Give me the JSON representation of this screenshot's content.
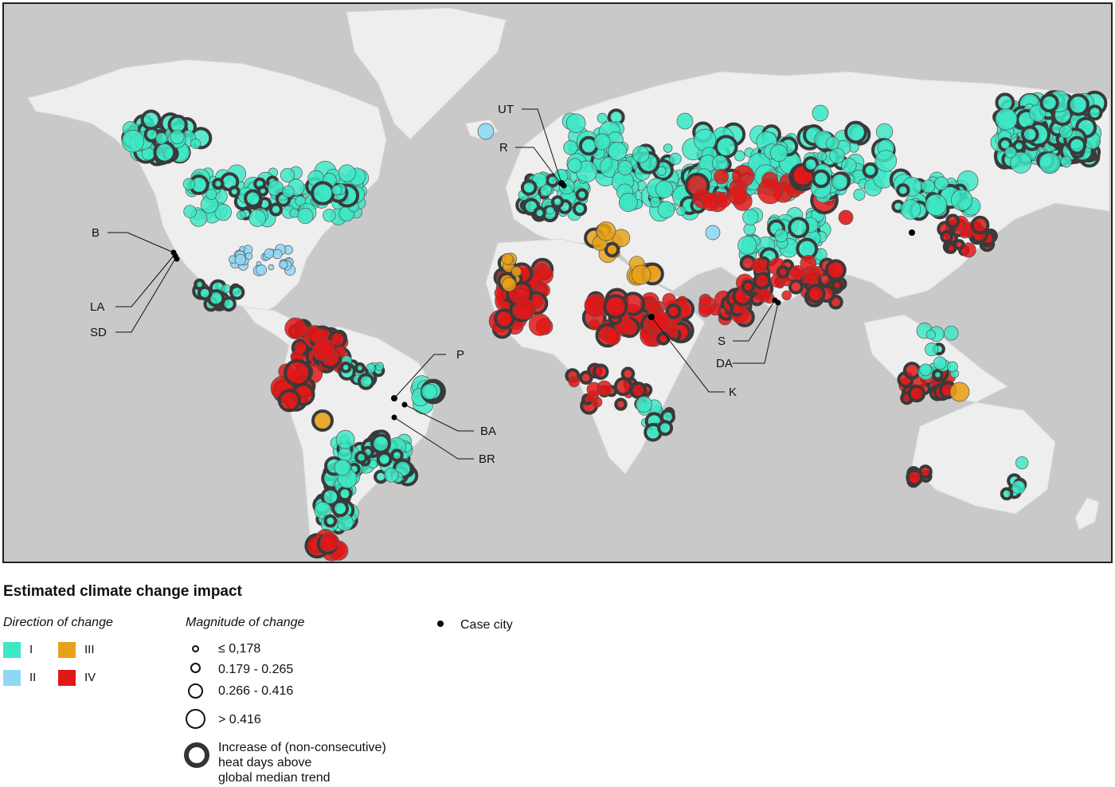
{
  "legend": {
    "title": "Estimated climate change impact",
    "direction_title": "Direction of change",
    "magnitude_title": "Magnitude of change",
    "directions": [
      {
        "label": "I",
        "color": "#3ee8c6"
      },
      {
        "label": "II",
        "color": "#8fd8f5"
      },
      {
        "label": "III",
        "color": "#e8a21a"
      },
      {
        "label": "IV",
        "color": "#e01818"
      }
    ],
    "magnitudes": [
      "≤ 0,178",
      "0.179 - 0.265",
      "0.266 - 0.416",
      "> 0.416"
    ],
    "heat_days_line1": "Increase of (non-consecutive)",
    "heat_days_line2": "heat days above",
    "heat_days_line3": "global median trend",
    "case_city_label": "Case city"
  },
  "cities": [
    {
      "code": "UT"
    },
    {
      "code": "R"
    },
    {
      "code": "B"
    },
    {
      "code": "LA"
    },
    {
      "code": "SD"
    },
    {
      "code": "P"
    },
    {
      "code": "BA"
    },
    {
      "code": "BR"
    },
    {
      "code": "S"
    },
    {
      "code": "DA"
    },
    {
      "code": "K"
    }
  ],
  "colors": {
    "I": "#3ee8c6",
    "II": "#8fd8f5",
    "III": "#e8a21a",
    "IV": "#e01818",
    "land": "#eeeeee",
    "ocean": "#c9c9c9"
  }
}
